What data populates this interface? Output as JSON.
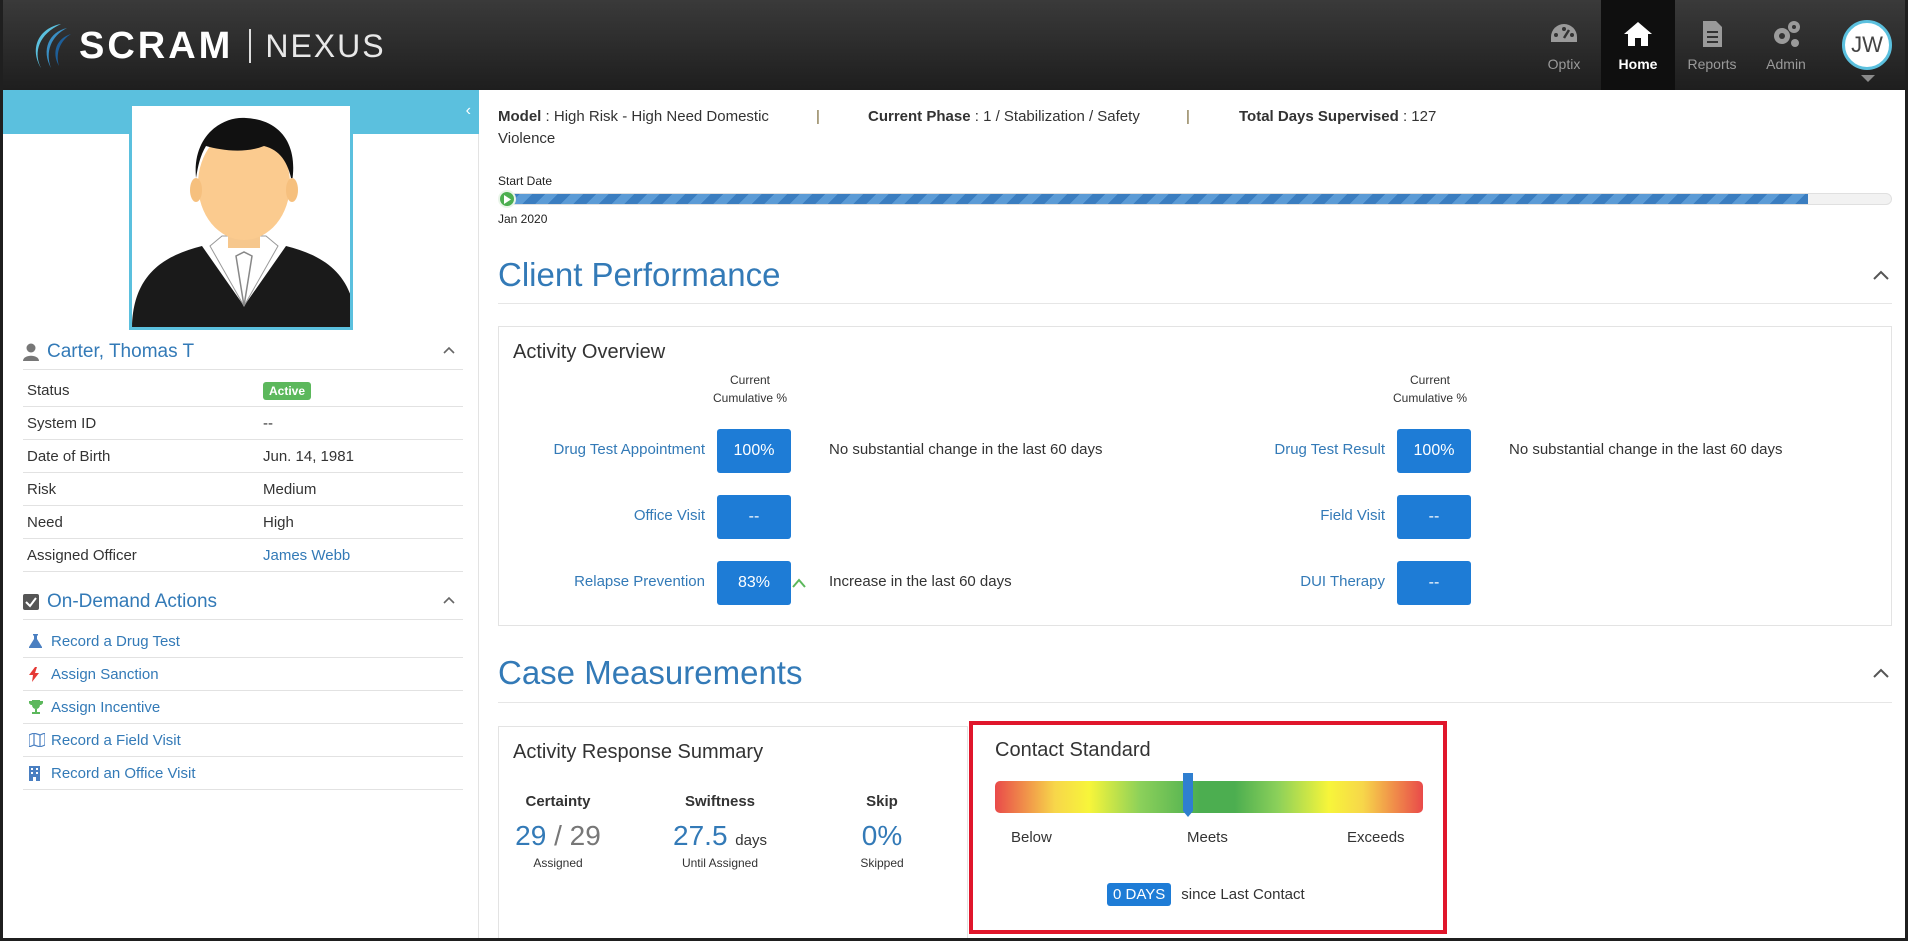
{
  "header": {
    "logo_text": "SCRAM",
    "logo_product": "NEXUS",
    "nav": [
      {
        "label": "Optix",
        "icon": "dashboard-icon"
      },
      {
        "label": "Home",
        "icon": "home-icon"
      },
      {
        "label": "Reports",
        "icon": "document-icon"
      },
      {
        "label": "Admin",
        "icon": "gears-icon"
      }
    ],
    "user_initials": "JW"
  },
  "sidebar": {
    "client_name": "Carter, Thomas T",
    "info": [
      {
        "label": "Status",
        "value": "Active"
      },
      {
        "label": "System ID",
        "value": "--"
      },
      {
        "label": "Date of Birth",
        "value": "Jun. 14, 1981"
      },
      {
        "label": "Risk",
        "value": "Medium"
      },
      {
        "label": "Need",
        "value": "High"
      },
      {
        "label": "Assigned Officer",
        "value": "James Webb"
      }
    ],
    "actions_title": "On-Demand Actions",
    "actions": [
      {
        "label": "Record a Drug Test",
        "icon": "flask-icon"
      },
      {
        "label": "Assign Sanction",
        "icon": "lightning-icon"
      },
      {
        "label": "Assign Incentive",
        "icon": "trophy-icon"
      },
      {
        "label": "Record a Field Visit",
        "icon": "map-icon"
      },
      {
        "label": "Record an Office Visit",
        "icon": "building-icon"
      }
    ]
  },
  "summary": {
    "model_label": "Model",
    "model_value": "High Risk - High Need Domestic Violence",
    "phase_label": "Current Phase",
    "phase_value": "1 / Stabilization / Safety",
    "days_label": "Total Days Supervised",
    "days_value": "127",
    "timeline_start_label": "Start Date",
    "timeline_start_date": "Jan 2020",
    "timeline_progress": 0.94
  },
  "client_performance": {
    "title": "Client Performance",
    "panel_title": "Activity Overview",
    "col_header": "Current Cumulative %",
    "left": [
      {
        "label": "Drug Test Appointment",
        "value": "100%",
        "note": "No substantial change in the last 60 days",
        "trend": ""
      },
      {
        "label": "Office Visit",
        "value": "--",
        "note": "",
        "trend": ""
      },
      {
        "label": "Relapse Prevention",
        "value": "83%",
        "note": "Increase in the last 60 days",
        "trend": "up"
      }
    ],
    "right": [
      {
        "label": "Drug Test Result",
        "value": "100%",
        "note": "No substantial change in the last 60 days"
      },
      {
        "label": "Field Visit",
        "value": "--",
        "note": ""
      },
      {
        "label": "DUI Therapy",
        "value": "--",
        "note": ""
      }
    ]
  },
  "case_measurements": {
    "title": "Case Measurements",
    "ars": {
      "title": "Activity Response Summary",
      "certainty": {
        "head": "Certainty",
        "num": "29",
        "den": "29",
        "sub": "Assigned"
      },
      "swiftness": {
        "head": "Swiftness",
        "num": "27.5",
        "unit": "days",
        "sub": "Until Assigned"
      },
      "skip": {
        "head": "Skip",
        "num": "0%",
        "sub": "Skipped"
      }
    },
    "contact": {
      "title": "Contact Standard",
      "labels": [
        "Below",
        "Meets",
        "Exceeds"
      ],
      "days": "0 DAYS",
      "days_text": "since Last Contact"
    }
  }
}
